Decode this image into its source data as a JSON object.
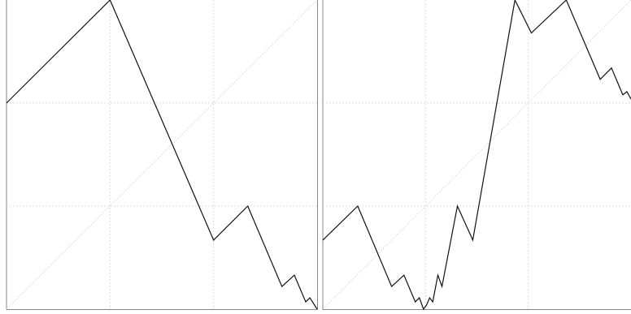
{
  "chart_data": [
    {
      "type": "line",
      "color": "#111111",
      "grid": true,
      "x": [
        0,
        1,
        2,
        2.33,
        2.66,
        2.78,
        2.89,
        2.93,
        3
      ],
      "values": [
        2,
        3,
        0.67,
        1,
        0.22,
        0.33,
        0.07,
        0.11,
        0
      ],
      "xlim": [
        0,
        3
      ],
      "ylim": [
        0,
        3
      ],
      "xticks": [
        1,
        2
      ],
      "yticks": [
        1,
        2
      ]
    },
    {
      "type": "line",
      "color": "#111111",
      "grid": true,
      "x": [
        0,
        0.34,
        0.67,
        0.79,
        0.9,
        0.94,
        0.98,
        1.01,
        1.04,
        1.07,
        1.12,
        1.16,
        1.31,
        1.46,
        1.87,
        2.03,
        2.37,
        2.7,
        2.81,
        2.92,
        2.96,
        3
      ],
      "values": [
        0.67,
        1,
        0.22,
        0.33,
        0.07,
        0.11,
        0,
        0.04,
        0.11,
        0.07,
        0.33,
        0.22,
        1,
        0.67,
        3,
        2.68,
        3,
        2.23,
        2.34,
        2.08,
        2.11,
        2.04
      ],
      "xlim": [
        0,
        3
      ],
      "ylim": [
        0,
        3
      ],
      "xticks": [
        1,
        2
      ],
      "yticks": [
        1,
        2
      ]
    }
  ]
}
